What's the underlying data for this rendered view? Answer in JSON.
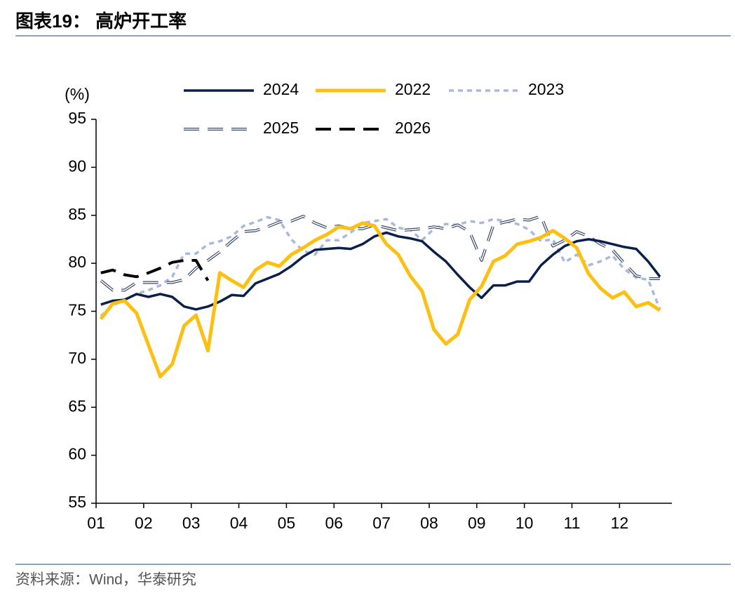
{
  "chart_data": {
    "type": "line",
    "title": "图表19：  高炉开工率",
    "y_label": "(%)",
    "source": "资料来源：Wind，华泰研究",
    "x": [
      1.1,
      1.35,
      1.6,
      1.85,
      2.1,
      2.35,
      2.6,
      2.85,
      3.1,
      3.35,
      3.6,
      3.85,
      4.1,
      4.35,
      4.6,
      4.85,
      5.1,
      5.35,
      5.6,
      5.85,
      6.1,
      6.35,
      6.6,
      6.85,
      7.1,
      7.35,
      7.6,
      7.85,
      8.1,
      8.35,
      8.6,
      8.85,
      9.1,
      9.35,
      9.6,
      9.85,
      10.1,
      10.35,
      10.6,
      10.85,
      11.1,
      11.35,
      11.6,
      11.85,
      12.1,
      12.35,
      12.6,
      12.85
    ],
    "xlim": [
      1,
      13.1
    ],
    "xticks": [
      {
        "value": 1,
        "label": "01"
      },
      {
        "value": 2,
        "label": "02"
      },
      {
        "value": 3,
        "label": "03"
      },
      {
        "value": 4,
        "label": "04"
      },
      {
        "value": 5,
        "label": "05"
      },
      {
        "value": 6,
        "label": "06"
      },
      {
        "value": 7,
        "label": "07"
      },
      {
        "value": 8,
        "label": "08"
      },
      {
        "value": 9,
        "label": "09"
      },
      {
        "value": 10,
        "label": "10"
      },
      {
        "value": 11,
        "label": "11"
      },
      {
        "value": 12,
        "label": "12"
      }
    ],
    "ylim": [
      55,
      95
    ],
    "yticks": [
      55,
      60,
      65,
      70,
      75,
      80,
      85,
      90,
      95
    ],
    "series": [
      {
        "name": "2024",
        "color": "#0b1f4b",
        "values": [
          75.7,
          76.1,
          76.2,
          76.8,
          76.5,
          76.8,
          76.5,
          75.5,
          75.2,
          75.5,
          76.0,
          76.7,
          76.6,
          77.9,
          78.4,
          78.9,
          79.7,
          80.7,
          81.4,
          81.5,
          81.6,
          81.5,
          82.0,
          82.8,
          83.2,
          82.8,
          82.6,
          82.3,
          81.2,
          80.2,
          78.8,
          77.5,
          76.4,
          77.7,
          77.7,
          78.1,
          78.1,
          79.8,
          80.9,
          81.8,
          82.3,
          82.5,
          82.3,
          82.0,
          81.7,
          81.5,
          80.2,
          78.6
        ]
      },
      {
        "name": "2022",
        "color": "#fdbf11",
        "values": [
          74.2,
          75.8,
          76.1,
          74.8,
          71.5,
          68.2,
          69.5,
          73.5,
          74.6,
          70.9,
          79.0,
          78.2,
          77.5,
          79.3,
          80.1,
          79.7,
          80.9,
          81.6,
          82.4,
          83.0,
          83.8,
          83.6,
          84.2,
          83.9,
          82.0,
          80.9,
          78.7,
          77.1,
          73.1,
          71.6,
          72.6,
          76.2,
          77.6,
          80.2,
          80.8,
          82.0,
          82.3,
          82.7,
          83.4,
          82.6,
          81.6,
          78.9,
          77.4,
          76.4,
          77.0,
          75.5,
          75.9,
          75.1
        ]
      },
      {
        "name": "2023",
        "color": "#a9b9dc",
        "values": [
          74.5,
          75.6,
          76.2,
          76.8,
          77.2,
          77.7,
          78.6,
          81.0,
          81.0,
          82.0,
          82.3,
          82.8,
          83.9,
          84.3,
          84.8,
          84.5,
          82.5,
          81.3,
          80.9,
          82.4,
          82.4,
          83.2,
          84.2,
          84.4,
          84.6,
          83.7,
          83.5,
          82.4,
          83.6,
          84.1,
          84.0,
          84.4,
          84.2,
          84.6,
          84.4,
          84.1,
          83.5,
          82.3,
          82.5,
          80.1,
          80.9,
          79.8,
          80.2,
          80.8,
          79.4,
          78.5,
          78.3,
          75.2
        ]
      },
      {
        "name": "2025",
        "color": "#3b4a6b",
        "values": [
          78.2,
          77.2,
          77.2,
          78.0,
          78.0,
          78.0,
          78.0,
          78.3,
          79.5,
          80.3,
          81.2,
          82.3,
          83.3,
          83.4,
          83.8,
          84.3,
          84.4,
          84.9,
          84.2,
          83.7,
          83.9,
          83.6,
          83.6,
          84.0,
          83.7,
          83.4,
          83.5,
          83.6,
          83.8,
          83.6,
          84.0,
          83.3,
          80.3,
          84.0,
          84.3,
          84.6,
          84.5,
          84.9,
          81.8,
          82.4,
          83.3,
          82.8,
          82.0,
          81.4,
          80.0,
          78.7,
          78.4,
          78.4
        ]
      },
      {
        "name": "2026",
        "color": "#000000",
        "values": [
          79.0,
          79.3,
          78.8,
          78.6,
          79.0,
          79.5,
          80.1,
          80.3,
          80.3,
          78.2,
          null,
          null,
          null,
          null,
          null,
          null,
          null,
          null,
          null,
          null,
          null,
          null,
          null,
          null,
          null,
          null,
          null,
          null,
          null,
          null,
          null,
          null,
          null,
          null,
          null,
          null,
          null,
          null,
          null,
          null,
          null,
          null,
          null,
          null,
          null,
          null,
          null,
          null
        ]
      }
    ]
  }
}
